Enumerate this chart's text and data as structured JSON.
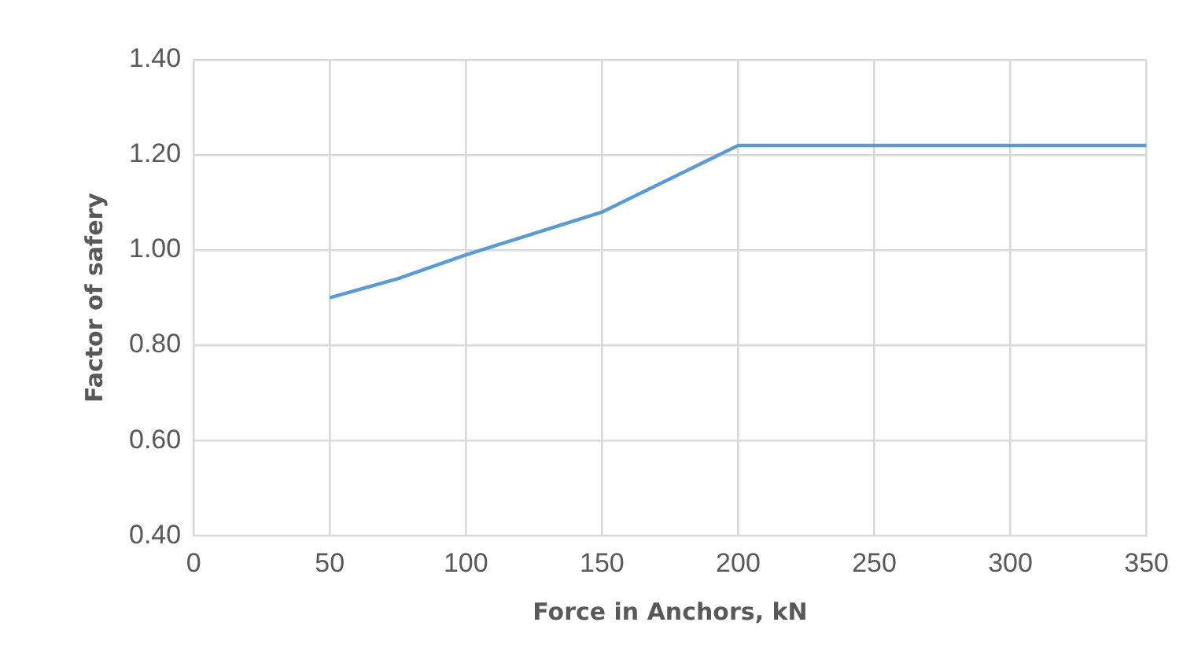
{
  "chart_data": {
    "type": "line",
    "xlabel": "Force in Anchors, kN",
    "ylabel": "Factor of safery",
    "x": [
      50,
      75,
      100,
      150,
      200,
      250,
      300,
      350
    ],
    "series": [
      {
        "color": "#5b9bd5",
        "values": [
          0.9,
          0.94,
          0.99,
          1.08,
          1.22,
          1.22,
          1.22,
          1.22
        ]
      }
    ],
    "xlim": [
      0,
      350
    ],
    "xticks": [
      0,
      50,
      100,
      150,
      200,
      250,
      300,
      350
    ],
    "ylim": [
      0.4,
      1.4
    ],
    "yticks": [
      {
        "value": 0.4,
        "label": "0.40"
      },
      {
        "value": 0.6,
        "label": "0.60"
      },
      {
        "value": 0.8,
        "label": "0.80"
      },
      {
        "value": 1.0,
        "label": "1.00"
      },
      {
        "value": 1.2,
        "label": "1.20"
      },
      {
        "value": 1.4,
        "label": "1.40"
      }
    ],
    "grid": true,
    "legend": false,
    "marker": "none",
    "line_style": "solid"
  }
}
